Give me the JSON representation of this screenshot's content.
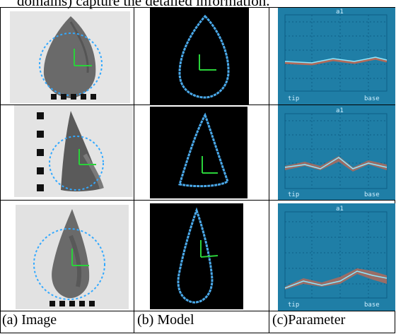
{
  "top_text": "domains) capture the detailed information.",
  "captions": [
    "(a) Image",
    "(b) Model",
    "(c)Parameter"
  ],
  "rows": [
    {
      "plot": {
        "title": "a1",
        "xlabel_left": "tip",
        "xlabel_right": "base"
      }
    },
    {
      "plot": {
        "title": "a1",
        "xlabel_left": "tip",
        "xlabel_right": "base"
      }
    },
    {
      "plot": {
        "title": "a1",
        "xlabel_left": "tip",
        "xlabel_right": "base"
      }
    }
  ],
  "colors": {
    "plot_bg": "#1f7ea6",
    "contour": "#4aa8e8",
    "axes": "#2ad23a",
    "curve": "#8ee8ff",
    "band": "#b06a5a"
  }
}
